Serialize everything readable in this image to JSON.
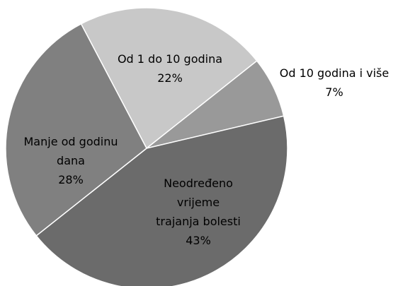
{
  "chart_data": {
    "type": "pie",
    "categories": [
      "Od 1 do 10 godina",
      "Od 10 godina i više",
      "Neodređeno\nvrijeme\ntrajanja bolesti",
      "Manje od godinu\ndana"
    ],
    "values": [
      22,
      7,
      43,
      28
    ],
    "value_labels": [
      "22%",
      "7%",
      "43%",
      "28%"
    ],
    "colors": [
      "#c8c8c8",
      "#999999",
      "#6b6b6b",
      "#808080"
    ]
  }
}
